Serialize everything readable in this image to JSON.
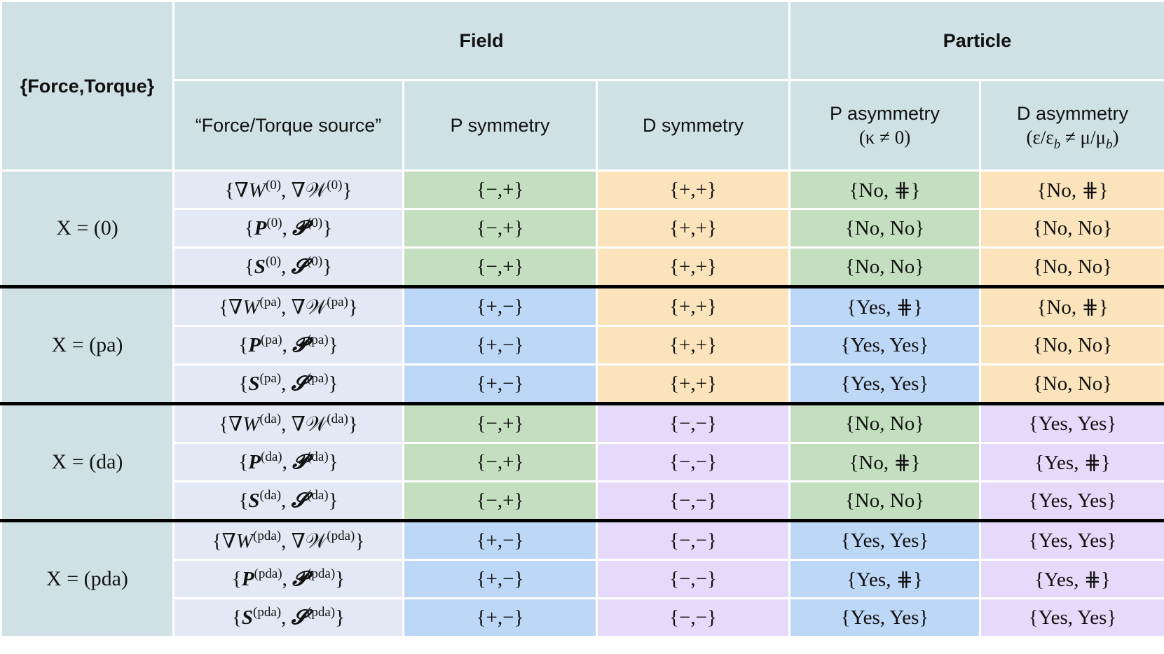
{
  "header": {
    "corner": "{Force,Torque}",
    "field": "Field",
    "particle": "Particle",
    "source": "“Force/Torque source”",
    "p_symmetry": "P symmetry",
    "d_symmetry": "D symmetry",
    "p_asymmetry": "P asymmetry",
    "p_asymmetry_cond": "(κ ≠ 0)",
    "d_asymmetry": "D asymmetry",
    "d_asymmetry_cond": "(ε/ε_b ≠ μ/μ_b)"
  },
  "groups": [
    {
      "label": "X = (0)",
      "sup": "(0)",
      "rows": [
        {
          "p_sym": "{−,+}",
          "d_sym": "{+,+}",
          "p_asym": "{No, ⋕}",
          "d_asym": "{No, ⋕}"
        },
        {
          "p_sym": "{−,+}",
          "d_sym": "{+,+}",
          "p_asym": "{No, No}",
          "d_asym": "{No, No}"
        },
        {
          "p_sym": "{−,+}",
          "d_sym": "{+,+}",
          "p_asym": "{No, No}",
          "d_asym": "{No, No}"
        }
      ]
    },
    {
      "label": "X = (pa)",
      "sup": "(pa)",
      "rows": [
        {
          "p_sym": "{+,−}",
          "d_sym": "{+,+}",
          "p_asym": "{Yes, ⋕}",
          "d_asym": "{No, ⋕}"
        },
        {
          "p_sym": "{+,−}",
          "d_sym": "{+,+}",
          "p_asym": "{Yes, Yes}",
          "d_asym": "{No, No}"
        },
        {
          "p_sym": "{+,−}",
          "d_sym": "{+,+}",
          "p_asym": "{Yes, Yes}",
          "d_asym": "{No, No}"
        }
      ]
    },
    {
      "label": "X = (da)",
      "sup": "(da)",
      "rows": [
        {
          "p_sym": "{−,+}",
          "d_sym": "{−,−}",
          "p_asym": "{No, No}",
          "d_asym": "{Yes, Yes}"
        },
        {
          "p_sym": "{−,+}",
          "d_sym": "{−,−}",
          "p_asym": "{No, ⋕}",
          "d_asym": "{Yes, ⋕}"
        },
        {
          "p_sym": "{−,+}",
          "d_sym": "{−,−}",
          "p_asym": "{No, No}",
          "d_asym": "{Yes, Yes}"
        }
      ]
    },
    {
      "label": "X = (pda)",
      "sup": "(pda)",
      "rows": [
        {
          "p_sym": "{+,−}",
          "d_sym": "{−,−}",
          "p_asym": "{Yes, Yes}",
          "d_asym": "{Yes, Yes}"
        },
        {
          "p_sym": "{+,−}",
          "d_sym": "{−,−}",
          "p_asym": "{Yes, ⋕}",
          "d_asym": "{Yes, ⋕}"
        },
        {
          "p_sym": "{+,−}",
          "d_sym": "{−,−}",
          "p_asym": "{Yes, Yes}",
          "d_asym": "{Yes, Yes}"
        }
      ]
    }
  ],
  "source_symbols": [
    {
      "pre": "{",
      "a": "∇W",
      "a_style": "it",
      "mid": ", ",
      "b": "∇𝒲",
      "b_style": "",
      "post": "}"
    },
    {
      "pre": "{",
      "a": "P",
      "a_style": "bi",
      "mid": ", ",
      "b": "𝓟",
      "b_style": "bi",
      "post": "}"
    },
    {
      "pre": "{",
      "a": "S",
      "a_style": "bi",
      "mid": ", ",
      "b": "𝓢",
      "b_style": "bi",
      "post": "}"
    }
  ],
  "colors": {
    "header": "#cfe1e5",
    "source": "#e4e8f4",
    "green": "#c4dfc0",
    "blue": "#bdd7f6",
    "orange": "#fbe4bc",
    "purple": "#e6dafa",
    "separator": "#000000"
  }
}
